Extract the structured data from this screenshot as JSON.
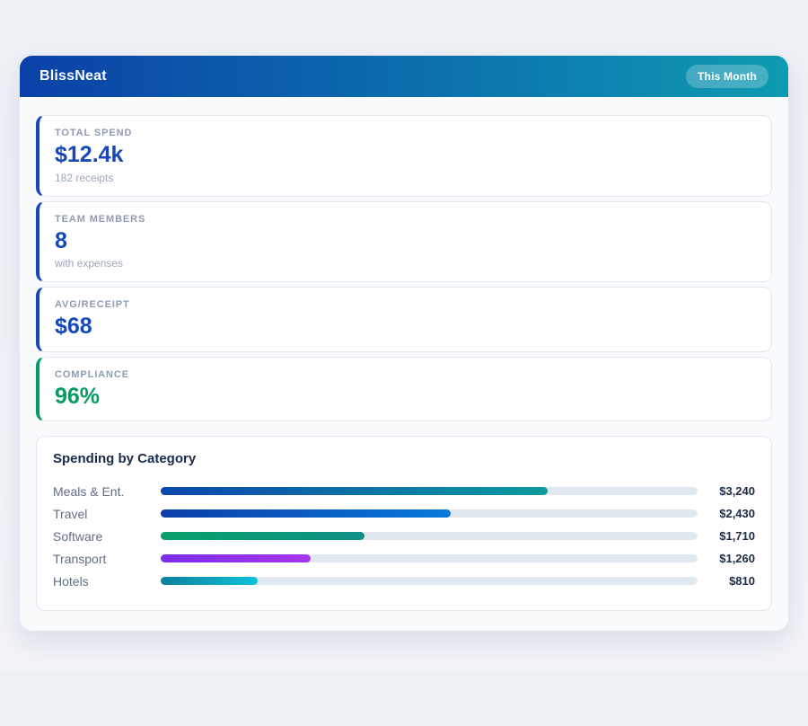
{
  "header": {
    "title": "BlissNeat",
    "badge_label": "This Month"
  },
  "colors": {
    "header_gradient_start": "#0b41a8",
    "header_gradient_end": "#0e9bb0",
    "accent_blue": "#1748b8",
    "accent_green": "#069b62",
    "bar_track": "#e2e8f0",
    "panel_background": "#f8fafc"
  },
  "stats": [
    {
      "label": "TOTAL SPEND",
      "value": "$12.4k",
      "subtitle": "182 receipts",
      "accent": "#1748b8",
      "value_color": "#1748b8"
    },
    {
      "label": "TEAM MEMBERS",
      "value": "8",
      "subtitle": "with expenses",
      "accent": "#1748b8",
      "value_color": "#1748b8"
    },
    {
      "label": "AVG/RECEIPT",
      "value": "$68",
      "subtitle": "",
      "accent": "#1748b8",
      "value_color": "#1748b8"
    },
    {
      "label": "COMPLIANCE",
      "value": "96%",
      "subtitle": "",
      "accent": "#069b62",
      "value_color": "#069b62"
    }
  ],
  "chart_data": {
    "type": "bar",
    "orientation": "horizontal",
    "title": "Spending by Category",
    "categories": [
      "Meals & Ent.",
      "Travel",
      "Software",
      "Transport",
      "Hotels"
    ],
    "values": [
      3240,
      2430,
      1710,
      1260,
      810
    ],
    "value_labels": [
      "$3,240",
      "$2,430",
      "$1,710",
      "$1,260",
      "$810"
    ],
    "axis_max": 4500,
    "grid": false,
    "legend": false,
    "track_color": "#e2e8f0",
    "bar_gradients": [
      [
        "#0b46ad",
        "#0c9b9d"
      ],
      [
        "#0b3fa8",
        "#0879dc"
      ],
      [
        "#09a06a",
        "#0d9186"
      ],
      [
        "#7b2ee8",
        "#a734ee"
      ],
      [
        "#0d7f9c",
        "#0bc2dc"
      ]
    ]
  }
}
